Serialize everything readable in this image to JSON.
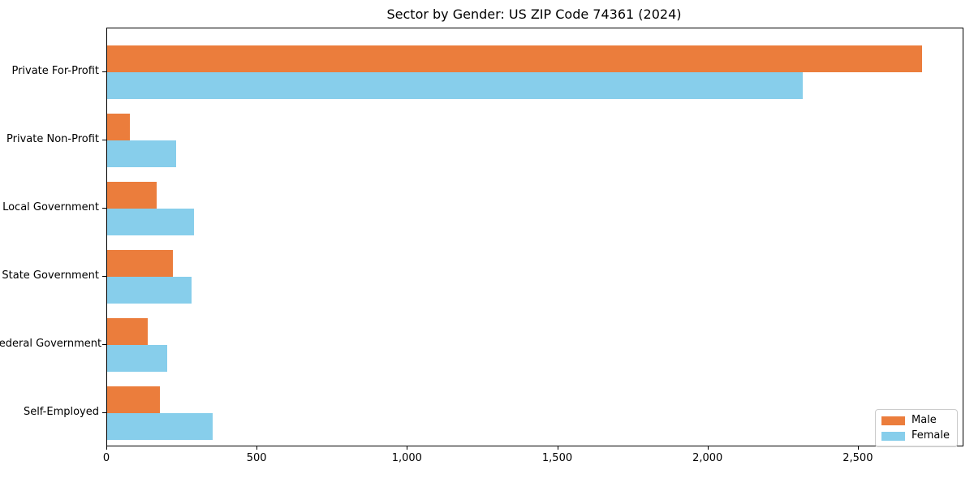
{
  "chart_data": {
    "type": "bar",
    "orientation": "horizontal",
    "title": "Sector by Gender: US ZIP Code 74361 (2024)",
    "categories": [
      "Private For-Profit",
      "Private Non-Profit",
      "Local Government",
      "State Government",
      "Federal Government",
      "Self-Employed"
    ],
    "series": [
      {
        "name": "Male",
        "color": "#EB7D3C",
        "values": [
          2710,
          75,
          165,
          220,
          135,
          175
        ]
      },
      {
        "name": "Female",
        "color": "#87CEEB",
        "values": [
          2315,
          230,
          290,
          280,
          200,
          350
        ]
      }
    ],
    "xlim": [
      0,
      2846
    ],
    "xticks": [
      0,
      500,
      1000,
      1500,
      2000,
      2500
    ],
    "xtick_labels": [
      "0",
      "500",
      "1,000",
      "1,500",
      "2,000",
      "2,500"
    ],
    "xlabel": "",
    "ylabel": "",
    "grid": false,
    "legend": {
      "position": "lower right",
      "items": [
        "Male",
        "Female"
      ]
    },
    "colors": {
      "male": "#EB7D3C",
      "female": "#87CEEB",
      "spine": "#000000",
      "legend_border": "#cccccc",
      "background": "#ffffff"
    }
  }
}
